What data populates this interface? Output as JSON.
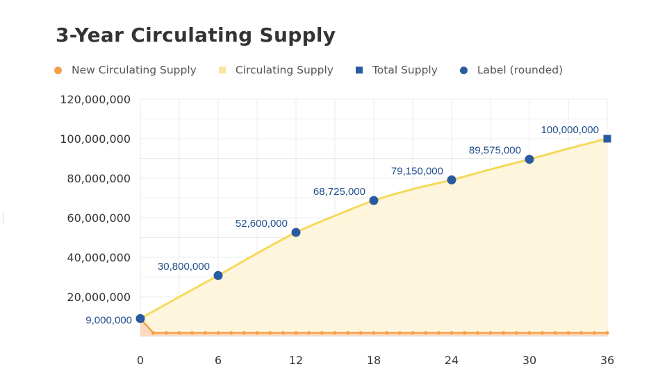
{
  "chart_data": {
    "type": "line",
    "title": "3-Year Circulating Supply",
    "x": [
      0,
      1,
      2,
      3,
      4,
      5,
      6,
      7,
      8,
      9,
      10,
      11,
      12,
      13,
      14,
      15,
      16,
      17,
      18,
      19,
      20,
      21,
      22,
      23,
      24,
      25,
      26,
      27,
      28,
      29,
      30,
      31,
      32,
      33,
      34,
      35,
      36
    ],
    "x_ticks": [
      "0",
      "6",
      "12",
      "18",
      "24",
      "30",
      "36"
    ],
    "y_ticks": [
      "20,000,000",
      "40,000,000",
      "60,000,000",
      "80,000,000",
      "100,000,000",
      "120,000,000"
    ],
    "ylim": [
      0,
      120000000
    ],
    "xlim": [
      0,
      36
    ],
    "grid": true,
    "legend_position": "top",
    "legend": [
      {
        "name": "New Circulating Supply",
        "symbol": "circle",
        "color": "#f4a04a"
      },
      {
        "name": "Circulating Supply",
        "symbol": "square",
        "color": "#f9e5a0"
      },
      {
        "name": "Total Supply",
        "symbol": "square",
        "color": "#2a5aa0"
      },
      {
        "name": "Label (rounded)",
        "symbol": "circle",
        "color": "#2a5aa0"
      }
    ],
    "series": [
      {
        "name": "Circulating Supply",
        "type": "area",
        "color": "#f5d95a",
        "fill": "#fdf5dc",
        "points": [
          [
            0,
            9000000
          ],
          [
            3,
            20000000
          ],
          [
            6,
            30800000
          ],
          [
            9,
            42000000
          ],
          [
            12,
            52600000
          ],
          [
            15,
            61000000
          ],
          [
            18,
            68725000
          ],
          [
            21,
            74500000
          ],
          [
            24,
            79150000
          ],
          [
            27,
            84500000
          ],
          [
            30,
            89575000
          ],
          [
            33,
            95000000
          ],
          [
            36,
            100000000
          ]
        ]
      },
      {
        "name": "New Circulating Supply",
        "type": "line",
        "color": "#f4a04a",
        "fill": "#fbdcc0",
        "points": [
          [
            0,
            9000000
          ],
          [
            1,
            1750000
          ],
          [
            2,
            1750000
          ],
          [
            3,
            1750000
          ],
          [
            4,
            1750000
          ],
          [
            5,
            1750000
          ],
          [
            6,
            1750000
          ],
          [
            7,
            1750000
          ],
          [
            8,
            1750000
          ],
          [
            9,
            1750000
          ],
          [
            10,
            1750000
          ],
          [
            11,
            1750000
          ],
          [
            12,
            1750000
          ],
          [
            13,
            1750000
          ],
          [
            14,
            1750000
          ],
          [
            15,
            1750000
          ],
          [
            16,
            1750000
          ],
          [
            17,
            1750000
          ],
          [
            18,
            1750000
          ],
          [
            19,
            1750000
          ],
          [
            20,
            1750000
          ],
          [
            21,
            1750000
          ],
          [
            22,
            1750000
          ],
          [
            23,
            1750000
          ],
          [
            24,
            1750000
          ],
          [
            25,
            1750000
          ],
          [
            26,
            1750000
          ],
          [
            27,
            1750000
          ],
          [
            28,
            1750000
          ],
          [
            29,
            1750000
          ],
          [
            30,
            1750000
          ],
          [
            31,
            1750000
          ],
          [
            32,
            1750000
          ],
          [
            33,
            1750000
          ],
          [
            34,
            1750000
          ],
          [
            35,
            1750000
          ],
          [
            36,
            1750000
          ]
        ]
      },
      {
        "name": "Total Supply",
        "type": "scatter",
        "marker": "square",
        "color": "#2a5aa0",
        "points": [
          [
            36,
            100000000
          ]
        ]
      },
      {
        "name": "Label (rounded)",
        "type": "scatter",
        "marker": "circle",
        "color": "#2a5aa0",
        "points": [
          [
            0,
            9000000
          ],
          [
            6,
            30800000
          ],
          [
            12,
            52600000
          ],
          [
            18,
            68725000
          ],
          [
            24,
            79150000
          ],
          [
            30,
            89575000
          ]
        ]
      }
    ],
    "data_labels": [
      {
        "x": 0,
        "y": 9000000,
        "text": "9,000,000"
      },
      {
        "x": 6,
        "y": 30800000,
        "text": "30,800,000"
      },
      {
        "x": 12,
        "y": 52600000,
        "text": "52,600,000"
      },
      {
        "x": 18,
        "y": 68725000,
        "text": "68,725,000"
      },
      {
        "x": 24,
        "y": 79150000,
        "text": "79,150,000"
      },
      {
        "x": 30,
        "y": 89575000,
        "text": "89,575,000"
      },
      {
        "x": 36,
        "y": 100000000,
        "text": "100,000,000"
      }
    ]
  }
}
